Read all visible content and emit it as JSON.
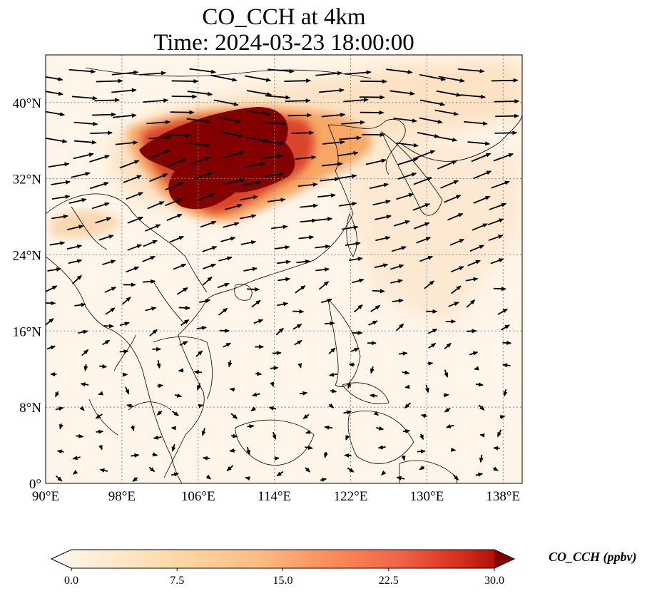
{
  "title": {
    "line1": "CO_CCH at 4km",
    "line2": "Time: 2024-03-23 18:00:00"
  },
  "map": {
    "lon_range": [
      90,
      140
    ],
    "lat_range": [
      0,
      45
    ],
    "x_ticks": [
      {
        "value": 90,
        "label": "90°E"
      },
      {
        "value": 98,
        "label": "98°E"
      },
      {
        "value": 106,
        "label": "106°E"
      },
      {
        "value": 114,
        "label": "114°E"
      },
      {
        "value": 122,
        "label": "122°E"
      },
      {
        "value": 130,
        "label": "130°E"
      },
      {
        "value": 138,
        "label": "138°E"
      }
    ],
    "y_ticks": [
      {
        "value": 0,
        "label": "0°"
      },
      {
        "value": 8,
        "label": "8°N"
      },
      {
        "value": 16,
        "label": "16°N"
      },
      {
        "value": 24,
        "label": "24°N"
      },
      {
        "value": 32,
        "label": "32°N"
      },
      {
        "value": 40,
        "label": "40°N"
      }
    ],
    "gridlines": "dotted",
    "field_variable": "CO_CCH",
    "overlay": "wind vectors",
    "plume_colors": {
      "light": "#fde2c4",
      "medium": "#f7a866",
      "strong": "#d9442a",
      "max": "#820000",
      "background": "#fff5e8"
    }
  },
  "colorbar": {
    "min": 0.0,
    "max": 30.0,
    "ticks": [
      {
        "value": 0.0,
        "label": "0.0"
      },
      {
        "value": 7.5,
        "label": "7.5"
      },
      {
        "value": 15.0,
        "label": "15.0"
      },
      {
        "value": 22.5,
        "label": "22.5"
      },
      {
        "value": 30.0,
        "label": "30.0"
      }
    ],
    "extend": "both",
    "colormap": "OrRd",
    "label": "CO_CCH (ppbv)"
  }
}
